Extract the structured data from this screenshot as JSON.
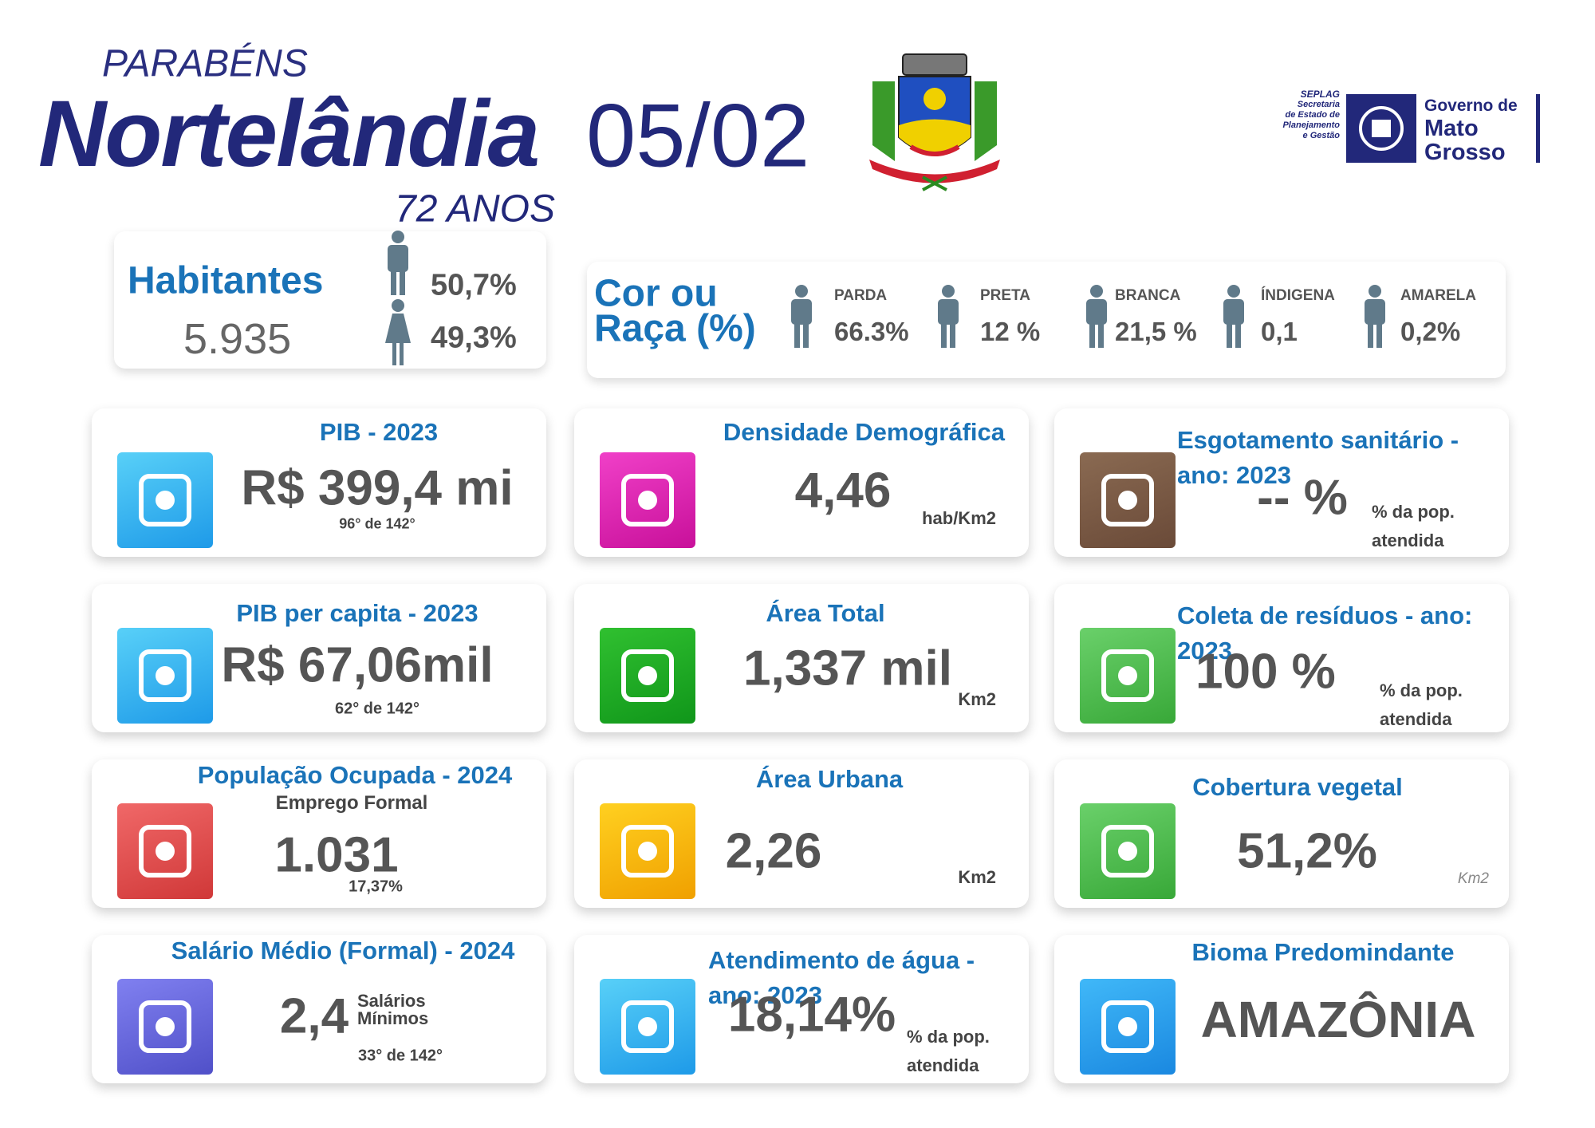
{
  "header": {
    "greeting": "PARABÉNS",
    "city": "Nortelândia",
    "date": "05/02",
    "age": "72 ANOS"
  },
  "logos": {
    "seplag": [
      "SEPLAG",
      "Secretaria",
      "de Estado de",
      "Planejamento",
      "e Gestão"
    ],
    "governo": [
      "Governo de",
      "Mato",
      "Grosso"
    ]
  },
  "population": {
    "label": "Habitantes",
    "value": "5.935",
    "male": "50,7%",
    "female": "49,3%"
  },
  "race": {
    "title": [
      "Cor ou",
      "Raça (%)"
    ],
    "groups": [
      {
        "name": "PARDA",
        "value": "66.3%"
      },
      {
        "name": "PRETA",
        "value": "12 %"
      },
      {
        "name": "BRANCA",
        "value": "21,5 %"
      },
      {
        "name": "ÍNDIGENA",
        "value": "0,1"
      },
      {
        "name": "AMARELA",
        "value": "0,2%"
      }
    ]
  },
  "cards": [
    {
      "title": "PIB - 2023",
      "value": "R$ 399,4 mi",
      "note": "96° de 142°"
    },
    {
      "title": "Densidade Demográfica",
      "value": "4,46",
      "unit": "hab/Km2"
    },
    {
      "title": "Esgotamento sanitário - ano: 2023",
      "value": "--   %",
      "note": "% da pop. atendida"
    },
    {
      "title": "PIB per capita - 2023",
      "value": "R$ 67,06mil",
      "note": "62° de 142°"
    },
    {
      "title": "Área Total",
      "value": "1,337 mil",
      "unit": "Km2"
    },
    {
      "title": "Coleta de resíduos - ano: 2023",
      "value": "100 %",
      "note": "% da pop. atendida"
    },
    {
      "title": "População Ocupada - 2024",
      "subtitle": "Emprego Formal",
      "value": "1.031",
      "note": "17,37%"
    },
    {
      "title": "Área Urbana",
      "value": "2,26",
      "unit": "Km2"
    },
    {
      "title": "Cobertura vegetal",
      "value": "51,2%",
      "unit": "Km2"
    },
    {
      "title": "Salário Médio (Formal) - 2024",
      "value": "2,4",
      "unit": "Salários Mínimos",
      "note": "33° de 142°"
    },
    {
      "title": "Atendimento de água - ano: 2023",
      "value": "18,14%",
      "note": "% da pop. atendida"
    },
    {
      "title": "Bioma Predomindante",
      "value": "AMAZÔNIA"
    }
  ]
}
